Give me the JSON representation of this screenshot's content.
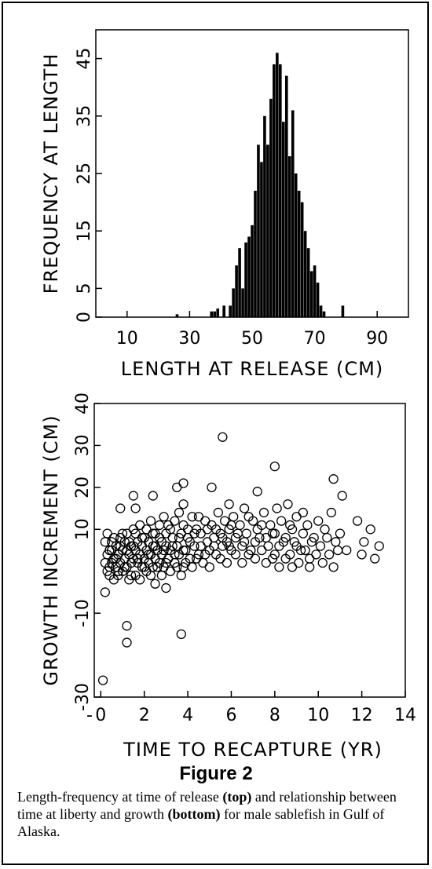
{
  "figure": {
    "title": "Figure 2",
    "caption_parts": [
      {
        "text": "Length-frequency at time of release ",
        "bold": false
      },
      {
        "text": "(top)",
        "bold": true
      },
      {
        "text": " and relationship between time at liberty and growth ",
        "bold": false
      },
      {
        "text": "(bottom)",
        "bold": true
      },
      {
        "text": " for male sablefish in Gulf of Alaska.",
        "bold": false
      }
    ]
  },
  "chart_data": [
    {
      "type": "bar",
      "xlabel": "LENGTH AT RELEASE (CM)",
      "ylabel": "FREQUENCY AT LENGTH",
      "xlim": [
        0,
        100
      ],
      "ylim": [
        0,
        50
      ],
      "xticks": [
        10,
        30,
        50,
        70,
        90
      ],
      "yticks": [
        0,
        5,
        15,
        25,
        35,
        45
      ],
      "x": [
        26,
        37,
        38,
        39,
        41,
        43,
        44,
        45,
        46,
        47,
        48,
        49,
        50,
        51,
        52,
        53,
        54,
        55,
        56,
        57,
        58,
        59,
        60,
        61,
        62,
        63,
        64,
        65,
        66,
        67,
        68,
        69,
        70,
        71,
        72,
        73,
        79
      ],
      "values": [
        0.5,
        1,
        1,
        1.5,
        2,
        2,
        5,
        9,
        12,
        5,
        13,
        14,
        16,
        22,
        30,
        27,
        35,
        30,
        38,
        44,
        46,
        44,
        34,
        42,
        28,
        36,
        25,
        22,
        20,
        15,
        12,
        8,
        9,
        6,
        2,
        1,
        2
      ]
    },
    {
      "type": "scatter",
      "xlabel": "TIME TO RECAPTURE (YR)",
      "ylabel": "GROWTH INCREMENT (CM)",
      "xlim": [
        -0.3,
        14
      ],
      "ylim": [
        -30,
        40
      ],
      "xticks": [
        "-",
        0,
        2,
        4,
        6,
        8,
        10,
        12,
        14
      ],
      "yticks": [
        -30,
        -10,
        10,
        20,
        30,
        40
      ],
      "points": [
        [
          0.1,
          -26
        ],
        [
          1.2,
          -13
        ],
        [
          1.2,
          -17
        ],
        [
          3.7,
          -15
        ],
        [
          0.2,
          -5
        ],
        [
          2.5,
          -3
        ],
        [
          3.0,
          -4
        ],
        [
          5.6,
          32
        ],
        [
          8.0,
          25
        ],
        [
          10.7,
          22
        ],
        [
          3.8,
          21
        ],
        [
          3.5,
          20
        ],
        [
          5.1,
          20
        ],
        [
          7.2,
          19
        ],
        [
          1.5,
          18
        ],
        [
          2.4,
          18
        ],
        [
          11.1,
          18
        ],
        [
          3.8,
          16
        ],
        [
          5.9,
          16
        ],
        [
          0.9,
          15
        ],
        [
          1.6,
          15
        ],
        [
          0.2,
          2
        ],
        [
          0.3,
          4
        ],
        [
          0.3,
          0
        ],
        [
          0.4,
          5
        ],
        [
          0.4,
          -1
        ],
        [
          0.5,
          7
        ],
        [
          0.5,
          2
        ],
        [
          0.6,
          3
        ],
        [
          0.6,
          -2
        ],
        [
          0.7,
          6
        ],
        [
          0.7,
          1
        ],
        [
          0.8,
          4
        ],
        [
          0.8,
          -1
        ],
        [
          0.9,
          8
        ],
        [
          0.9,
          2
        ],
        [
          1.0,
          5
        ],
        [
          1.0,
          0
        ],
        [
          1.1,
          3
        ],
        [
          1.1,
          7
        ],
        [
          1.2,
          1
        ],
        [
          1.2,
          9
        ],
        [
          1.3,
          4
        ],
        [
          1.3,
          -2
        ],
        [
          1.4,
          6
        ],
        [
          1.4,
          2
        ],
        [
          1.5,
          10
        ],
        [
          1.5,
          3
        ],
        [
          1.6,
          5
        ],
        [
          1.6,
          -1
        ],
        [
          1.7,
          7
        ],
        [
          1.7,
          2
        ],
        [
          1.8,
          4
        ],
        [
          1.8,
          11
        ],
        [
          1.9,
          1
        ],
        [
          1.9,
          6
        ],
        [
          2.0,
          3
        ],
        [
          2.0,
          8
        ],
        [
          2.1,
          5
        ],
        [
          2.1,
          0
        ],
        [
          2.2,
          7
        ],
        [
          2.2,
          2
        ],
        [
          2.3,
          12
        ],
        [
          2.3,
          4
        ],
        [
          2.4,
          6
        ],
        [
          2.4,
          1
        ],
        [
          2.5,
          9
        ],
        [
          2.5,
          3
        ],
        [
          2.6,
          5
        ],
        [
          2.7,
          11
        ],
        [
          2.7,
          2
        ],
        [
          2.8,
          7
        ],
        [
          2.8,
          4
        ],
        [
          2.9,
          13
        ],
        [
          2.9,
          1
        ],
        [
          3.0,
          6
        ],
        [
          3.0,
          9
        ],
        [
          3.1,
          3
        ],
        [
          3.2,
          10
        ],
        [
          3.2,
          5
        ],
        [
          3.3,
          8
        ],
        [
          3.4,
          2
        ],
        [
          3.4,
          12
        ],
        [
          3.5,
          6
        ],
        [
          3.6,
          4
        ],
        [
          3.6,
          14
        ],
        [
          3.7,
          9
        ],
        [
          3.8,
          1
        ],
        [
          3.8,
          11
        ],
        [
          3.9,
          5
        ],
        [
          4.0,
          8
        ],
        [
          4.1,
          3
        ],
        [
          4.2,
          13
        ],
        [
          4.3,
          6
        ],
        [
          4.4,
          10
        ],
        [
          4.5,
          4
        ],
        [
          4.6,
          9
        ],
        [
          4.7,
          2
        ],
        [
          4.8,
          12
        ],
        [
          4.9,
          7
        ],
        [
          5.0,
          5
        ],
        [
          5.1,
          11
        ],
        [
          5.2,
          8
        ],
        [
          5.3,
          4
        ],
        [
          5.4,
          14
        ],
        [
          5.5,
          9
        ],
        [
          5.6,
          6
        ],
        [
          5.7,
          12
        ],
        [
          5.8,
          7
        ],
        [
          5.9,
          10
        ],
        [
          6.0,
          5
        ],
        [
          6.1,
          13
        ],
        [
          6.2,
          8
        ],
        [
          6.4,
          11
        ],
        [
          6.5,
          6
        ],
        [
          6.6,
          15
        ],
        [
          6.7,
          9
        ],
        [
          6.8,
          4
        ],
        [
          7.0,
          12
        ],
        [
          7.1,
          7
        ],
        [
          7.2,
          10
        ],
        [
          7.4,
          5
        ],
        [
          7.5,
          14
        ],
        [
          7.6,
          8
        ],
        [
          7.8,
          11
        ],
        [
          7.9,
          3
        ],
        [
          8.0,
          9
        ],
        [
          8.1,
          15
        ],
        [
          8.2,
          6
        ],
        [
          8.3,
          12
        ],
        [
          8.5,
          8
        ],
        [
          8.6,
          16
        ],
        [
          8.7,
          4
        ],
        [
          8.8,
          10
        ],
        [
          8.9,
          7
        ],
        [
          9.0,
          13
        ],
        [
          9.2,
          5
        ],
        [
          9.3,
          9
        ],
        [
          9.5,
          11
        ],
        [
          9.6,
          3
        ],
        [
          9.8,
          8
        ],
        [
          10.0,
          12
        ],
        [
          10.1,
          6
        ],
        [
          10.3,
          10
        ],
        [
          10.5,
          4
        ],
        [
          10.6,
          14
        ],
        [
          10.8,
          7
        ],
        [
          11.0,
          9
        ],
        [
          11.3,
          5
        ],
        [
          11.8,
          12
        ],
        [
          12.0,
          4
        ],
        [
          12.1,
          7
        ],
        [
          12.4,
          10
        ],
        [
          12.6,
          3
        ],
        [
          12.8,
          6
        ],
        [
          0.2,
          7
        ],
        [
          0.3,
          9
        ],
        [
          0.4,
          1
        ],
        [
          0.5,
          5
        ],
        [
          0.6,
          8
        ],
        [
          0.7,
          3
        ],
        [
          0.8,
          0
        ],
        [
          0.9,
          6
        ],
        [
          1.0,
          9
        ],
        [
          1.1,
          1
        ],
        [
          1.2,
          5
        ],
        [
          1.3,
          7
        ],
        [
          1.4,
          -1
        ],
        [
          1.5,
          6
        ],
        [
          1.6,
          9
        ],
        [
          1.7,
          3
        ],
        [
          1.8,
          -2
        ],
        [
          1.9,
          8
        ],
        [
          2.0,
          1
        ],
        [
          2.1,
          10
        ],
        [
          2.2,
          4
        ],
        [
          2.3,
          -1
        ],
        [
          2.4,
          9
        ],
        [
          2.5,
          6
        ],
        [
          2.6,
          1
        ],
        [
          2.7,
          8
        ],
        [
          2.8,
          -1
        ],
        [
          2.9,
          5
        ],
        [
          3.0,
          2
        ],
        [
          3.1,
          11
        ],
        [
          3.2,
          0
        ],
        [
          3.3,
          6
        ],
        [
          3.4,
          4
        ],
        [
          3.5,
          1
        ],
        [
          3.6,
          8
        ],
        [
          3.7,
          -1
        ],
        [
          3.8,
          5
        ],
        [
          3.9,
          2
        ],
        [
          4.0,
          10
        ],
        [
          4.1,
          7
        ],
        [
          4.2,
          1
        ],
        [
          4.3,
          9
        ],
        [
          4.4,
          3
        ],
        [
          4.5,
          13
        ],
        [
          4.6,
          6
        ],
        [
          4.8,
          4
        ],
        [
          4.9,
          10
        ],
        [
          5.0,
          1
        ],
        [
          5.2,
          6
        ],
        [
          5.3,
          10
        ],
        [
          5.5,
          3
        ],
        [
          5.6,
          8
        ],
        [
          5.8,
          2
        ],
        [
          5.9,
          6
        ],
        [
          6.0,
          11
        ],
        [
          6.2,
          4
        ],
        [
          6.3,
          9
        ],
        [
          6.5,
          2
        ],
        [
          6.6,
          7
        ],
        [
          6.8,
          13
        ],
        [
          6.9,
          5
        ],
        [
          7.1,
          3
        ],
        [
          7.3,
          8
        ],
        [
          7.4,
          11
        ],
        [
          7.6,
          2
        ],
        [
          7.7,
          6
        ],
        [
          7.9,
          9
        ],
        [
          8.0,
          4
        ],
        [
          8.2,
          1
        ],
        [
          8.4,
          7
        ],
        [
          8.5,
          3
        ],
        [
          8.7,
          11
        ],
        [
          8.8,
          1
        ],
        [
          9.0,
          6
        ],
        [
          9.1,
          2
        ],
        [
          9.3,
          14
        ],
        [
          9.4,
          5
        ],
        [
          9.6,
          1
        ],
        [
          9.7,
          7
        ],
        [
          9.9,
          4
        ],
        [
          10.2,
          2
        ],
        [
          10.4,
          8
        ],
        [
          10.7,
          1
        ],
        [
          10.9,
          5
        ]
      ]
    }
  ]
}
